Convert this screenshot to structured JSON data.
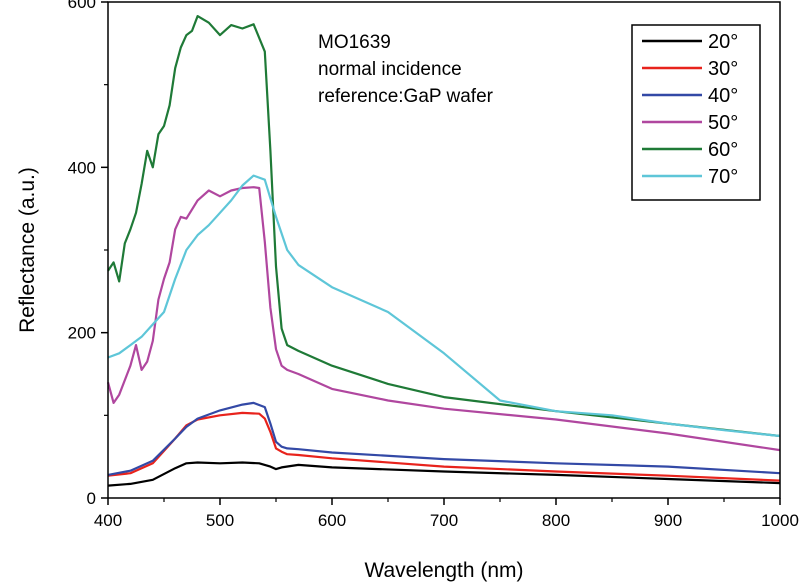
{
  "chart_data": {
    "type": "line",
    "xlabel": "Wavelength (nm)",
    "ylabel": "Reflectance (a.u.)",
    "xlim": [
      400,
      1000
    ],
    "ylim": [
      0,
      600
    ],
    "xticks": [
      400,
      500,
      600,
      700,
      800,
      900,
      1000
    ],
    "yticks": [
      0,
      200,
      400,
      600
    ],
    "grid": false,
    "legend_position": "top-right",
    "annotations": [
      "MO1639",
      "normal incidence",
      "reference:GaP wafer"
    ],
    "series": [
      {
        "name": "20°",
        "color": "#000000",
        "x": [
          400,
          420,
          440,
          460,
          470,
          480,
          500,
          520,
          535,
          545,
          550,
          555,
          570,
          600,
          700,
          800,
          900,
          1000
        ],
        "y": [
          15,
          17,
          22,
          36,
          42,
          43,
          42,
          43,
          42,
          38,
          35,
          37,
          40,
          37,
          32,
          28,
          23,
          18
        ]
      },
      {
        "name": "30°",
        "color": "#e8231c",
        "x": [
          400,
          420,
          440,
          460,
          470,
          480,
          500,
          520,
          535,
          540,
          545,
          550,
          555,
          560,
          570,
          600,
          700,
          800,
          900,
          1000
        ],
        "y": [
          27,
          30,
          42,
          72,
          88,
          95,
          100,
          103,
          102,
          96,
          80,
          60,
          56,
          53,
          52,
          48,
          38,
          32,
          27,
          21
        ]
      },
      {
        "name": "40°",
        "color": "#3349a6",
        "x": [
          400,
          420,
          440,
          460,
          470,
          480,
          500,
          520,
          530,
          540,
          545,
          550,
          555,
          560,
          570,
          600,
          700,
          800,
          900,
          1000
        ],
        "y": [
          28,
          33,
          45,
          72,
          86,
          96,
          106,
          113,
          115,
          110,
          90,
          68,
          62,
          60,
          59,
          55,
          47,
          42,
          38,
          30
        ]
      },
      {
        "name": "50°",
        "color": "#b0479f",
        "x": [
          400,
          405,
          410,
          420,
          425,
          430,
          435,
          440,
          445,
          450,
          455,
          460,
          465,
          470,
          480,
          490,
          500,
          510,
          520,
          530,
          535,
          540,
          545,
          550,
          555,
          560,
          570,
          600,
          650,
          700,
          800,
          900,
          1000
        ],
        "y": [
          140,
          115,
          125,
          160,
          185,
          155,
          165,
          190,
          240,
          265,
          285,
          325,
          340,
          338,
          360,
          372,
          365,
          372,
          375,
          376,
          375,
          310,
          230,
          180,
          160,
          155,
          150,
          132,
          118,
          108,
          95,
          78,
          58
        ]
      },
      {
        "name": "60°",
        "color": "#1f7a37",
        "x": [
          400,
          405,
          410,
          415,
          420,
          425,
          430,
          435,
          440,
          445,
          450,
          455,
          460,
          465,
          470,
          475,
          480,
          490,
          500,
          510,
          520,
          530,
          540,
          545,
          550,
          555,
          560,
          570,
          600,
          650,
          700,
          800,
          900,
          1000
        ],
        "y": [
          275,
          285,
          262,
          308,
          325,
          345,
          380,
          420,
          400,
          440,
          450,
          475,
          520,
          545,
          560,
          565,
          583,
          575,
          560,
          572,
          568,
          573,
          540,
          420,
          280,
          205,
          185,
          178,
          160,
          138,
          122,
          105,
          90,
          75
        ]
      },
      {
        "name": "70°",
        "color": "#5ec6d8",
        "x": [
          400,
          410,
          420,
          430,
          440,
          450,
          460,
          470,
          480,
          490,
          500,
          510,
          520,
          530,
          540,
          550,
          560,
          570,
          600,
          650,
          700,
          750,
          800,
          850,
          900,
          950,
          1000
        ],
        "y": [
          170,
          175,
          185,
          195,
          210,
          225,
          265,
          300,
          318,
          330,
          345,
          360,
          378,
          390,
          385,
          340,
          300,
          282,
          255,
          225,
          175,
          118,
          105,
          100,
          90,
          82,
          75
        ]
      }
    ]
  }
}
